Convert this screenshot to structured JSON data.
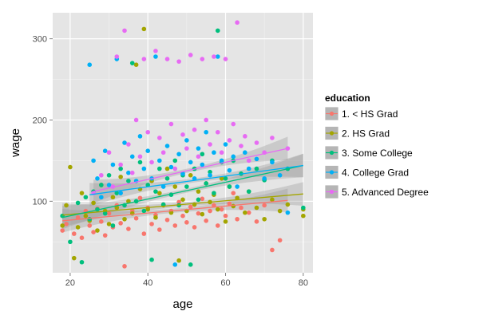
{
  "chart_data": {
    "type": "scatter",
    "xlabel": "age",
    "ylabel": "wage",
    "xlim": [
      15.5,
      82.5
    ],
    "ylim": [
      12,
      332
    ],
    "x_ticks": [
      20,
      40,
      60,
      80
    ],
    "y_ticks": [
      100,
      200,
      300
    ],
    "grid": true,
    "background": "#e5e5e5",
    "grid_color": "#ffffff",
    "legend": {
      "title": "education",
      "placement": "right"
    },
    "series": [
      {
        "name": "1. < HS Grad",
        "color": "#f8766d",
        "trend": {
          "x": [
            18,
            76
          ],
          "y": [
            76,
            101
          ]
        },
        "points": [
          [
            18,
            64
          ],
          [
            19,
            72
          ],
          [
            21,
            60
          ],
          [
            22,
            80
          ],
          [
            23,
            55
          ],
          [
            24,
            88
          ],
          [
            25,
            70
          ],
          [
            26,
            62
          ],
          [
            27,
            91
          ],
          [
            28,
            75
          ],
          [
            29,
            58
          ],
          [
            30,
            85
          ],
          [
            31,
            68
          ],
          [
            32,
            95
          ],
          [
            33,
            73
          ],
          [
            34,
            20
          ],
          [
            35,
            66
          ],
          [
            36,
            88
          ],
          [
            37,
            79
          ],
          [
            38,
            104
          ],
          [
            39,
            60
          ],
          [
            40,
            92
          ],
          [
            41,
            72
          ],
          [
            42,
            83
          ],
          [
            43,
            65
          ],
          [
            44,
            96
          ],
          [
            45,
            77
          ],
          [
            46,
            88
          ],
          [
            47,
            70
          ],
          [
            48,
            99
          ],
          [
            49,
            82
          ],
          [
            50,
            74
          ],
          [
            51,
            93
          ],
          [
            52,
            68
          ],
          [
            53,
            85
          ],
          [
            54,
            103
          ],
          [
            55,
            76
          ],
          [
            56,
            88
          ],
          [
            57,
            95
          ],
          [
            58,
            70
          ],
          [
            59,
            90
          ],
          [
            60,
            82
          ],
          [
            61,
            97
          ],
          [
            62,
            110
          ],
          [
            63,
            78
          ],
          [
            64,
            92
          ],
          [
            66,
            86
          ],
          [
            68,
            75
          ],
          [
            70,
            95
          ],
          [
            72,
            40
          ],
          [
            74,
            52
          ]
        ]
      },
      {
        "name": "2. HS Grad",
        "color": "#a3a500",
        "trend": {
          "x": [
            18,
            80
          ],
          "y": [
            83,
            109
          ]
        },
        "points": [
          [
            18,
            70
          ],
          [
            19,
            95
          ],
          [
            20,
            142
          ],
          [
            21,
            30
          ],
          [
            22,
            68
          ],
          [
            23,
            110
          ],
          [
            24,
            82
          ],
          [
            25,
            76
          ],
          [
            26,
            98
          ],
          [
            27,
            64
          ],
          [
            28,
            120
          ],
          [
            29,
            88
          ],
          [
            30,
            72
          ],
          [
            31,
            105
          ],
          [
            32,
            92
          ],
          [
            33,
            130
          ],
          [
            34,
            78
          ],
          [
            35,
            100
          ],
          [
            36,
            85
          ],
          [
            37,
            268
          ],
          [
            38,
            115
          ],
          [
            39,
            312
          ],
          [
            40,
            90
          ],
          [
            41,
            125
          ],
          [
            42,
            80
          ],
          [
            43,
            110
          ],
          [
            44,
            95
          ],
          [
            45,
            140
          ],
          [
            46,
            86
          ],
          [
            47,
            118
          ],
          [
            48,
            27
          ],
          [
            49,
            102
          ],
          [
            50,
            88
          ],
          [
            51,
            132
          ],
          [
            52,
            96
          ],
          [
            53,
            112
          ],
          [
            54,
            84
          ],
          [
            55,
            122
          ],
          [
            56,
            99
          ],
          [
            57,
            108
          ],
          [
            58,
            90
          ],
          [
            59,
            128
          ],
          [
            60,
            75
          ],
          [
            61,
            118
          ],
          [
            62,
            94
          ],
          [
            63,
            104
          ],
          [
            65,
            86
          ],
          [
            66,
            112
          ],
          [
            68,
            92
          ],
          [
            70,
            78
          ],
          [
            72,
            102
          ],
          [
            74,
            88
          ],
          [
            76,
            96
          ],
          [
            80,
            90
          ],
          [
            80,
            82
          ]
        ]
      },
      {
        "name": "3. Some College",
        "color": "#00bf7d",
        "trend": {
          "x": [
            18,
            80
          ],
          "y": [
            80,
            144
          ]
        },
        "points": [
          [
            18,
            82
          ],
          [
            20,
            50
          ],
          [
            22,
            98
          ],
          [
            23,
            25
          ],
          [
            24,
            105
          ],
          [
            25,
            78
          ],
          [
            26,
            112
          ],
          [
            27,
            90
          ],
          [
            28,
            120
          ],
          [
            29,
            85
          ],
          [
            30,
            132
          ],
          [
            31,
            70
          ],
          [
            32,
            110
          ],
          [
            33,
            140
          ],
          [
            34,
            95
          ],
          [
            35,
            125
          ],
          [
            36,
            270
          ],
          [
            37,
            100
          ],
          [
            38,
            148
          ],
          [
            39,
            88
          ],
          [
            40,
            120
          ],
          [
            41,
            28
          ],
          [
            42,
            112
          ],
          [
            43,
            140
          ],
          [
            44,
            96
          ],
          [
            45,
            128
          ],
          [
            46,
            108
          ],
          [
            47,
            150
          ],
          [
            48,
            95
          ],
          [
            49,
            132
          ],
          [
            50,
            118
          ],
          [
            51,
            22
          ],
          [
            52,
            140
          ],
          [
            53,
            102
          ],
          [
            54,
            158
          ],
          [
            55,
            122
          ],
          [
            56,
            136
          ],
          [
            57,
            110
          ],
          [
            58,
            310
          ],
          [
            59,
            148
          ],
          [
            60,
            128
          ],
          [
            61,
            118
          ],
          [
            62,
            150
          ],
          [
            64,
            134
          ],
          [
            66,
            112
          ],
          [
            68,
            140
          ],
          [
            70,
            126
          ],
          [
            72,
            150
          ],
          [
            76,
            140
          ],
          [
            80,
            92
          ]
        ]
      },
      {
        "name": "4. College Grad",
        "color": "#00b0f6",
        "trend": {
          "x": [
            25,
            80
          ],
          "y": [
            108,
            144
          ]
        },
        "points": [
          [
            25,
            268
          ],
          [
            26,
            150
          ],
          [
            27,
            128
          ],
          [
            28,
            105
          ],
          [
            29,
            162
          ],
          [
            30,
            120
          ],
          [
            31,
            145
          ],
          [
            32,
            275
          ],
          [
            33,
            110
          ],
          [
            34,
            172
          ],
          [
            35,
            135
          ],
          [
            36,
            155
          ],
          [
            37,
            125
          ],
          [
            38,
            180
          ],
          [
            39,
            140
          ],
          [
            40,
            162
          ],
          [
            41,
            128
          ],
          [
            42,
            278
          ],
          [
            43,
            150
          ],
          [
            44,
            118
          ],
          [
            45,
            168
          ],
          [
            46,
            142
          ],
          [
            47,
            22
          ],
          [
            48,
            158
          ],
          [
            49,
            134
          ],
          [
            50,
            175
          ],
          [
            51,
            148
          ],
          [
            52,
            128
          ],
          [
            53,
            165
          ],
          [
            54,
            145
          ],
          [
            55,
            185
          ],
          [
            56,
            132
          ],
          [
            57,
            160
          ],
          [
            58,
            278
          ],
          [
            59,
            150
          ],
          [
            60,
            170
          ],
          [
            61,
            138
          ],
          [
            62,
            155
          ],
          [
            63,
            118
          ],
          [
            65,
            160
          ],
          [
            66,
            140
          ],
          [
            68,
            152
          ],
          [
            70,
            128
          ],
          [
            72,
            148
          ],
          [
            74,
            132
          ],
          [
            76,
            86
          ]
        ]
      },
      {
        "name": "5. Advanced Degree",
        "color": "#e76bf3",
        "trend": {
          "x": [
            26,
            76
          ],
          "y": [
            112,
            165
          ]
        },
        "points": [
          [
            26,
            110
          ],
          [
            28,
            132
          ],
          [
            30,
            160
          ],
          [
            31,
            118
          ],
          [
            32,
            278
          ],
          [
            33,
            145
          ],
          [
            34,
            310
          ],
          [
            35,
            170
          ],
          [
            36,
            135
          ],
          [
            37,
            200
          ],
          [
            38,
            155
          ],
          [
            39,
            275
          ],
          [
            40,
            185
          ],
          [
            41,
            148
          ],
          [
            42,
            285
          ],
          [
            43,
            178
          ],
          [
            44,
            160
          ],
          [
            45,
            275
          ],
          [
            46,
            195
          ],
          [
            47,
            140
          ],
          [
            48,
            272
          ],
          [
            49,
            182
          ],
          [
            50,
            165
          ],
          [
            51,
            280
          ],
          [
            52,
            188
          ],
          [
            53,
            155
          ],
          [
            54,
            275
          ],
          [
            55,
            200
          ],
          [
            56,
            170
          ],
          [
            57,
            278
          ],
          [
            58,
            185
          ],
          [
            59,
            160
          ],
          [
            60,
            275
          ],
          [
            61,
            175
          ],
          [
            62,
            195
          ],
          [
            63,
            320
          ],
          [
            64,
            168
          ],
          [
            65,
            180
          ],
          [
            66,
            150
          ],
          [
            68,
            172
          ],
          [
            70,
            160
          ],
          [
            72,
            178
          ],
          [
            76,
            165
          ]
        ]
      }
    ]
  }
}
